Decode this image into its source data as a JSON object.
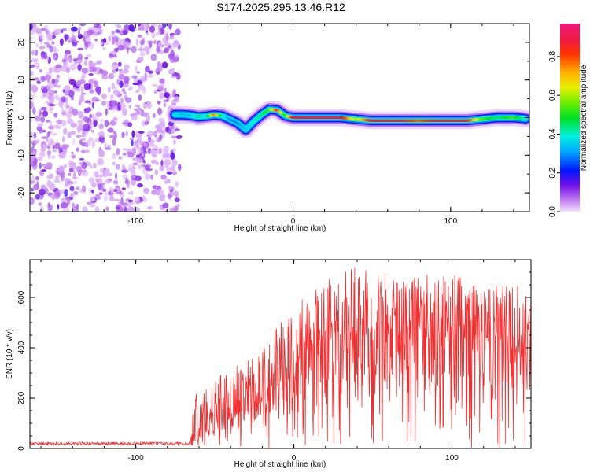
{
  "figure_title": "S174.2025.295.13.46.R12",
  "chart_data": [
    {
      "type": "heatmap",
      "title": "S174.2025.295.13.46.R12",
      "xlabel": "Height of straight line (km)",
      "ylabel": "Frequency (Hz)",
      "xlim": [
        -167,
        150
      ],
      "ylim": [
        -25,
        25
      ],
      "xticks": [
        -100,
        0,
        100
      ],
      "yticks": [
        -20,
        -10,
        0,
        10,
        20
      ],
      "noise_region": {
        "x_range": [
          -167,
          -72
        ],
        "y_range": [
          -25,
          25
        ],
        "description": "scattered purple speckle"
      },
      "signal_track": {
        "x": [
          -75,
          -70,
          -65,
          -60,
          -55,
          -50,
          -45,
          -40,
          -35,
          -30,
          -25,
          -20,
          -15,
          -10,
          -5,
          0,
          10,
          20,
          30,
          40,
          50,
          60,
          70,
          80,
          90,
          100,
          110,
          120,
          130,
          140,
          148
        ],
        "freq": [
          0.8,
          0.8,
          0.6,
          0.2,
          0.4,
          0.7,
          0.5,
          -0.5,
          -1.5,
          -3.2,
          -1.0,
          0.8,
          2.2,
          2.0,
          0.5,
          0.0,
          0.0,
          0.0,
          0.0,
          -0.4,
          -0.8,
          -0.8,
          -0.8,
          -0.8,
          -0.8,
          -0.8,
          -0.8,
          -0.4,
          0.0,
          0.0,
          -0.3
        ],
        "amplitude": [
          0.4,
          0.35,
          0.35,
          0.45,
          0.4,
          0.8,
          0.45,
          0.3,
          0.3,
          0.35,
          0.4,
          0.45,
          0.55,
          0.85,
          0.5,
          0.9,
          0.95,
          0.95,
          0.95,
          0.6,
          0.9,
          0.9,
          0.9,
          0.8,
          0.9,
          0.9,
          0.9,
          0.55,
          0.45,
          0.55,
          0.4
        ]
      },
      "colorbar": {
        "label": "Normalized spectral amplitude",
        "range": [
          0.0,
          0.97
        ],
        "ticks": [
          0.0,
          0.2,
          0.4,
          0.6,
          0.8
        ],
        "tick_labels": [
          "0.0",
          "0.2",
          "0.4",
          "0.6",
          "0.8"
        ]
      }
    },
    {
      "type": "line",
      "xlabel": "Height of straight line (km)",
      "ylabel": "SNR (10 * v/v)",
      "xlim": [
        -167,
        150
      ],
      "ylim": [
        0,
        750
      ],
      "xticks": [
        -100,
        0,
        100
      ],
      "yticks": [
        0,
        200,
        400,
        600
      ],
      "color": "#f03030",
      "series": [
        {
          "name": "SNR",
          "x": [
            -167,
            -140,
            -110,
            -80,
            -66,
            -62,
            -58,
            -50,
            -40,
            -30,
            -20,
            -10,
            0,
            10,
            20,
            30,
            40,
            50,
            60,
            70,
            80,
            90,
            100,
            110,
            115,
            120,
            130,
            140,
            150
          ],
          "base": [
            10,
            10,
            10,
            10,
            15,
            40,
            60,
            90,
            120,
            150,
            190,
            250,
            330,
            400,
            440,
            450,
            440,
            430,
            420,
            430,
            440,
            440,
            440,
            440,
            440,
            430,
            400,
            380,
            400
          ],
          "peak": [
            30,
            35,
            30,
            30,
            40,
            240,
            220,
            280,
            320,
            360,
            420,
            500,
            560,
            640,
            680,
            720,
            740,
            730,
            720,
            700,
            700,
            690,
            690,
            680,
            660,
            650,
            650,
            650,
            650
          ]
        }
      ]
    }
  ]
}
